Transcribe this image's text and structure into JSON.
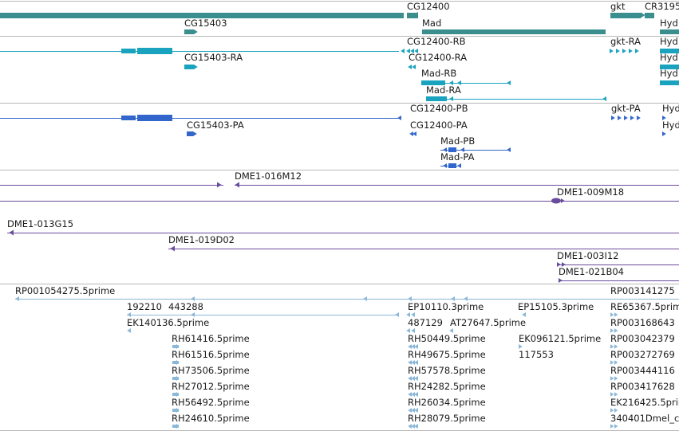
{
  "colors": {
    "genes": "#3a8e8e",
    "rna_mod": "#1aa3bf",
    "cdna": "#3366cc",
    "bac": "#6a4c9c",
    "est": "#8ab8d8",
    "divider": "#b8b8b8"
  },
  "tracks": [
    {
      "name": "gene-track",
      "color_key": "genes",
      "features": [
        {
          "name": "gene-feature",
          "label": "CG12400"
        },
        {
          "name": "gene-feature",
          "label": "CG15403"
        },
        {
          "name": "gene-feature",
          "label": "Mad"
        },
        {
          "name": "gene-feature",
          "label": "gkt"
        },
        {
          "name": "gene-feature",
          "label": "CR3195"
        },
        {
          "name": "gene-feature",
          "label": "Hyd"
        }
      ]
    },
    {
      "name": "transcript-track",
      "color_key": "rna_mod",
      "features": [
        {
          "name": "transcript-feature",
          "label": "CG12400-RB"
        },
        {
          "name": "transcript-feature",
          "label": "gkt-RA"
        },
        {
          "name": "transcript-feature",
          "label": "Hyd"
        },
        {
          "name": "transcript-feature",
          "label": "CG15403-RA"
        },
        {
          "name": "transcript-feature",
          "label": "CG12400-RA"
        },
        {
          "name": "transcript-feature",
          "label": "Hyd"
        },
        {
          "name": "transcript-feature",
          "label": "Mad-RB"
        },
        {
          "name": "transcript-feature",
          "label": "Hyd"
        },
        {
          "name": "transcript-feature",
          "label": "Mad-RA"
        }
      ]
    },
    {
      "name": "protein-track",
      "color_key": "cdna",
      "features": [
        {
          "name": "protein-feature",
          "label": "CG12400-PB"
        },
        {
          "name": "protein-feature",
          "label": "gkt-PA"
        },
        {
          "name": "protein-feature",
          "label": "Hyd"
        },
        {
          "name": "protein-feature",
          "label": "CG15403-PA"
        },
        {
          "name": "protein-feature",
          "label": "CG12400-PA"
        },
        {
          "name": "protein-feature",
          "label": "Hyd"
        },
        {
          "name": "protein-feature",
          "label": "Mad-PB"
        },
        {
          "name": "protein-feature",
          "label": "Mad-PA"
        }
      ]
    },
    {
      "name": "bac-track",
      "color_key": "bac",
      "features": [
        {
          "name": "bac-feature",
          "label": "DME1-016M12"
        },
        {
          "name": "bac-feature",
          "label": "DME1-009M18"
        },
        {
          "name": "bac-feature",
          "label": "DME1-013G15"
        },
        {
          "name": "bac-feature",
          "label": "DME1-019D02"
        },
        {
          "name": "bac-feature",
          "label": "DME1-003I12"
        },
        {
          "name": "bac-feature",
          "label": "DME1-021B04"
        }
      ]
    },
    {
      "name": "est-track",
      "color_key": "est",
      "features": [
        {
          "name": "est-feature",
          "label": "RP001054275.5prime"
        },
        {
          "name": "est-feature",
          "label": "RP003141275"
        },
        {
          "name": "est-feature",
          "label": "192210"
        },
        {
          "name": "est-feature",
          "label": "443288"
        },
        {
          "name": "est-feature",
          "label": "EP10110.3prime"
        },
        {
          "name": "est-feature",
          "label": "EP15105.3prime"
        },
        {
          "name": "est-feature",
          "label": "RE65367.5prime"
        },
        {
          "name": "est-feature",
          "label": "EK140136.5prime"
        },
        {
          "name": "est-feature",
          "label": "487129"
        },
        {
          "name": "est-feature",
          "label": "AT27647.5prime"
        },
        {
          "name": "est-feature",
          "label": "RP003168643"
        },
        {
          "name": "est-feature",
          "label": "RH61416.5prime"
        },
        {
          "name": "est-feature",
          "label": "RH50449.5prime"
        },
        {
          "name": "est-feature",
          "label": "EK096121.5prime"
        },
        {
          "name": "est-feature",
          "label": "RP003042379"
        },
        {
          "name": "est-feature",
          "label": "RH61516.5prime"
        },
        {
          "name": "est-feature",
          "label": "RH49675.5prime"
        },
        {
          "name": "est-feature",
          "label": "117553"
        },
        {
          "name": "est-feature",
          "label": "RP003272769"
        },
        {
          "name": "est-feature",
          "label": "RH73506.5prime"
        },
        {
          "name": "est-feature",
          "label": "RH57578.5prime"
        },
        {
          "name": "est-feature",
          "label": "RP003444116"
        },
        {
          "name": "est-feature",
          "label": "RH27012.5prime"
        },
        {
          "name": "est-feature",
          "label": "RH24282.5prime"
        },
        {
          "name": "est-feature",
          "label": "RP003417628"
        },
        {
          "name": "est-feature",
          "label": "RH56492.5prime"
        },
        {
          "name": "est-feature",
          "label": "RH26034.5prime"
        },
        {
          "name": "est-feature",
          "label": "EK216425.5prime"
        },
        {
          "name": "est-feature",
          "label": "RH24610.5prime"
        },
        {
          "name": "est-feature",
          "label": "RH28079.5prime"
        },
        {
          "name": "est-feature",
          "label": "340401Dmel_c"
        }
      ]
    }
  ]
}
